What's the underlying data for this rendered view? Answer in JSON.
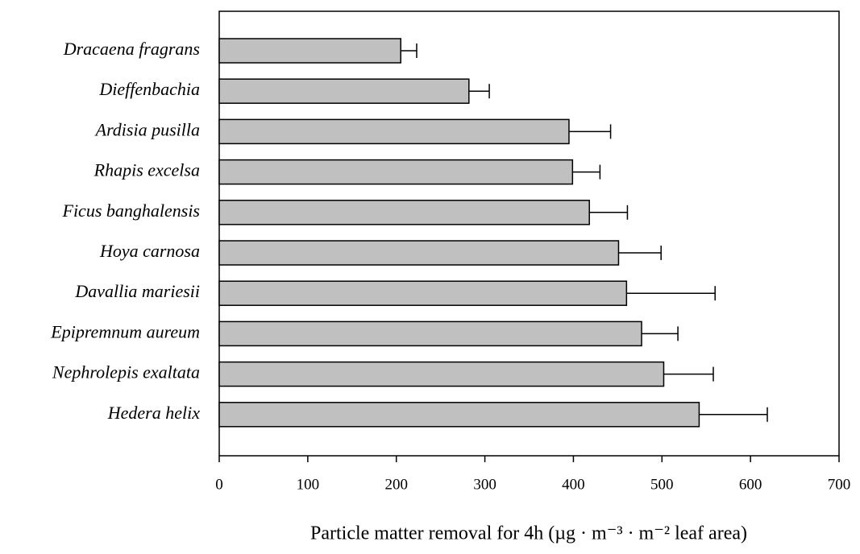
{
  "chart_data": {
    "type": "bar",
    "orientation": "horizontal",
    "x_label": "Particle matter removal for 4h (µg · m⁻³ · m⁻² leaf area)",
    "categories": [
      "Dracaena fragrans",
      "Dieffenbachia",
      "Ardisia pusilla",
      "Rhapis excelsa",
      "Ficus banghalensis",
      "Hoya carnosa",
      "Davallia mariesii",
      "Epipremnum aureum",
      "Nephrolepis exaltata",
      "Hedera helix"
    ],
    "values": [
      205,
      282,
      395,
      399,
      418,
      451,
      460,
      477,
      502,
      542
    ],
    "errors": [
      18,
      23,
      47,
      31,
      43,
      48,
      100,
      41,
      56,
      77
    ],
    "color": "#c0c0c0",
    "xlim": [
      0,
      700
    ],
    "xticks": [
      0,
      100,
      200,
      300,
      400,
      500,
      600,
      700
    ]
  }
}
